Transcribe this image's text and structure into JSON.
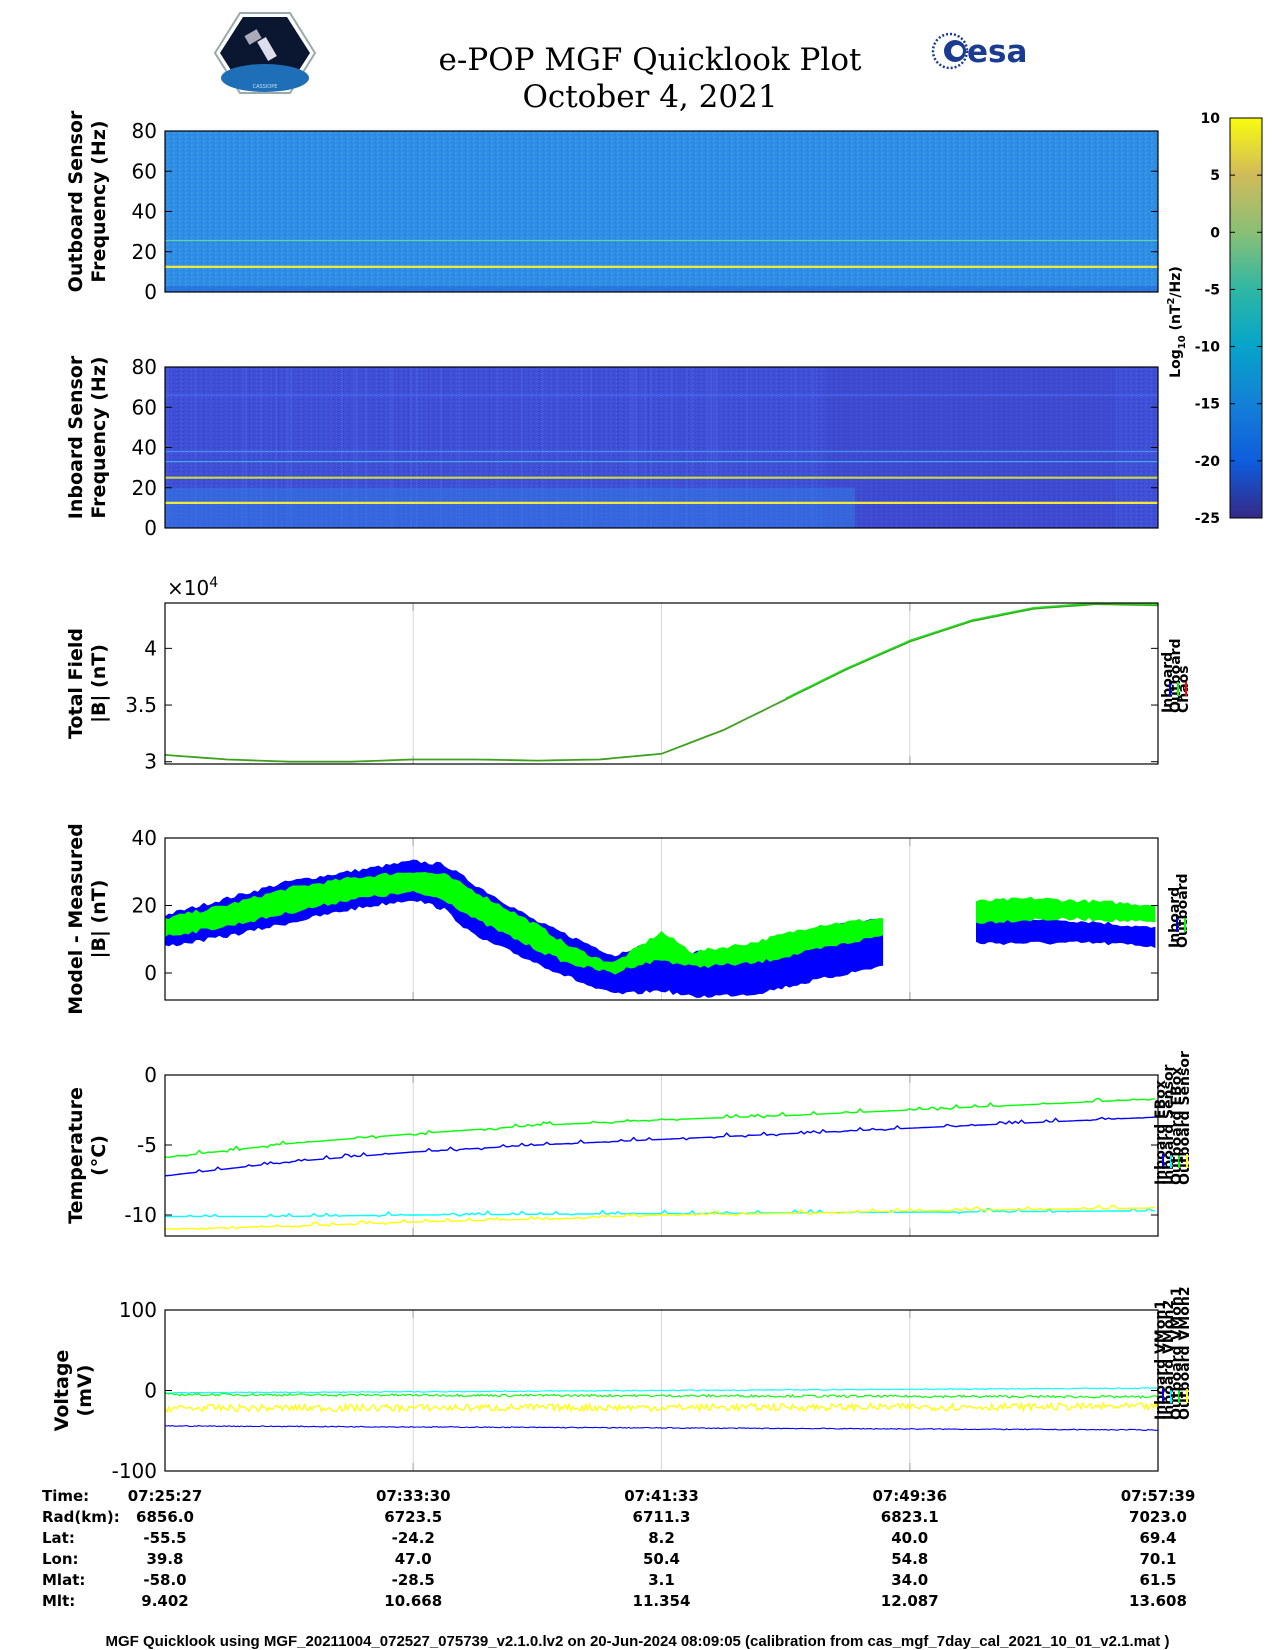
{
  "header": {
    "title": "e-POP MGF Quicklook Plot",
    "date": "October 4, 2021",
    "esa_logo_text": "esa",
    "cassiope_logo_text": "CASSIOPE"
  },
  "colorbar": {
    "label": "Log10 (nT^2/Hz)",
    "label_main": "Log",
    "label_sub": "10",
    "label_rest": " (nT",
    "label_sup": "2",
    "label_end": "/Hz)",
    "ticks": [
      "10",
      "5",
      "0",
      "-5",
      "-10",
      "-15",
      "-20",
      "-25"
    ],
    "range": [
      -25,
      10
    ]
  },
  "chart_data": [
    {
      "type": "heatmap",
      "ylabel": [
        "Outboard Sensor",
        "Frequency (Hz)"
      ],
      "ylim": [
        0,
        80
      ],
      "yticks": [
        "80",
        "60",
        "40",
        "20",
        "0"
      ],
      "background_log10": -13,
      "lines": [
        {
          "frequency_hz": 12.5,
          "log10": 6,
          "color": "#f3e83a"
        },
        {
          "frequency_hz": 25.6,
          "log10": -7,
          "color": "#5fd2a8"
        }
      ]
    },
    {
      "type": "heatmap",
      "ylabel": [
        "Inboard Sensor",
        "Frequency (Hz)"
      ],
      "ylim": [
        0,
        80
      ],
      "yticks": [
        "80",
        "60",
        "40",
        "20",
        "0"
      ],
      "background_log10": -18,
      "lines": [
        {
          "frequency_hz": 12.5,
          "log10": 6,
          "color": "#f3e83a"
        },
        {
          "frequency_hz": 25.0,
          "log10": 2,
          "color": "#c9d84a"
        },
        {
          "frequency_hz": 33.0,
          "log10": -12,
          "color": "#3ea8e8"
        },
        {
          "frequency_hz": 38.0,
          "log10": -13,
          "color": "#4a8ef0"
        },
        {
          "frequency_hz": 66.0,
          "log10": -15,
          "color": "#4d6cf5"
        }
      ]
    },
    {
      "type": "line",
      "ylabel": [
        "Total Field",
        "|B| (nT)"
      ],
      "exponent_label": "×10^4",
      "exponent_base": "×10",
      "exponent_power": "4",
      "ylim": [
        2.98,
        4.4
      ],
      "yticks": [
        "3",
        "3.5",
        "4"
      ],
      "ytick_values": [
        3.0,
        3.5,
        4.0
      ],
      "legend": [
        "Inboard",
        "Outboard",
        "Chaos"
      ],
      "legend_colors": [
        "#0000ff",
        "#00ff00",
        "#ff0000"
      ],
      "x_minutes": [
        0,
        4,
        8,
        12,
        16,
        20,
        24,
        28,
        32,
        36,
        40,
        44,
        48,
        52,
        56,
        60,
        64
      ],
      "series": [
        {
          "name": "Outboard",
          "color": "#3f9f1f",
          "values": [
            3.06,
            3.02,
            3.0,
            3.0,
            3.02,
            3.02,
            3.01,
            3.02,
            3.07,
            3.28,
            3.55,
            3.82,
            4.06,
            4.24,
            4.35,
            4.39,
            4.38
          ]
        }
      ]
    },
    {
      "type": "line",
      "ylabel": [
        "Model - Measured",
        "|B| (nT)"
      ],
      "ylim": [
        -8,
        40
      ],
      "yticks": [
        "40",
        "20",
        "0"
      ],
      "ytick_values": [
        40,
        20,
        0
      ],
      "legend": [
        "Inboard",
        "Outboard"
      ],
      "legend_colors": [
        "#0000ff",
        "#00ff00"
      ],
      "x_minutes": [
        0,
        4,
        8,
        12,
        16,
        18,
        20,
        24,
        26,
        28,
        29,
        30,
        32,
        34,
        38,
        42,
        46,
        52,
        56,
        60,
        64
      ],
      "gaps_minutes": [
        [
          46.3,
          52.3
        ]
      ],
      "series": [
        {
          "name": "Inboard",
          "color": "#0000ff",
          "upper": [
            17,
            22,
            27,
            30,
            33,
            32,
            26,
            15,
            11,
            7,
            5,
            7,
            9,
            6,
            8,
            13,
            16,
            16,
            16,
            15,
            13
          ],
          "lower": [
            8,
            11,
            15,
            19,
            22,
            19,
            11,
            3,
            -1,
            -5,
            -6,
            -6,
            -5,
            -7,
            -6,
            -2,
            2,
            9,
            9,
            9,
            8
          ]
        },
        {
          "name": "Outboard",
          "color": "#00ff00",
          "upper": [
            16,
            20,
            25,
            28,
            30,
            29,
            24,
            14,
            8,
            4,
            3,
            6,
            12,
            6,
            9,
            14,
            16,
            21,
            22,
            21,
            20
          ],
          "lower": [
            11,
            14,
            18,
            22,
            24,
            22,
            16,
            7,
            3,
            1,
            0,
            2,
            4,
            2,
            3,
            7,
            11,
            15,
            16,
            16,
            15
          ]
        }
      ]
    },
    {
      "type": "line",
      "ylabel": [
        "Temperature",
        "(°C)"
      ],
      "ylim": [
        -11.5,
        0
      ],
      "yticks": [
        "0",
        "-5",
        "-10"
      ],
      "ytick_values": [
        0,
        -5,
        -10
      ],
      "legend": [
        "Inboard EBox",
        "Inboard Sensor",
        "Outboard EBox",
        "Outboard Sensor"
      ],
      "legend_colors": [
        "#0000ff",
        "#00ffff",
        "#00ff00",
        "#ffff00"
      ],
      "x_minutes": [
        0,
        8,
        16,
        24,
        32,
        40,
        48,
        56,
        64
      ],
      "series": [
        {
          "name": "Outboard EBox",
          "color": "#00ff00",
          "values": [
            -5.9,
            -4.9,
            -4.2,
            -3.6,
            -3.2,
            -2.9,
            -2.5,
            -2.1,
            -1.7
          ]
        },
        {
          "name": "Inboard EBox",
          "color": "#0000ff",
          "values": [
            -7.2,
            -6.2,
            -5.5,
            -5.0,
            -4.6,
            -4.2,
            -3.8,
            -3.4,
            -3.0
          ]
        },
        {
          "name": "Inboard Sensor",
          "color": "#00ffff",
          "values": [
            -10.1,
            -10.1,
            -10.0,
            -9.95,
            -9.9,
            -9.85,
            -9.8,
            -9.75,
            -9.7
          ]
        },
        {
          "name": "Outboard Sensor",
          "color": "#ffff00",
          "values": [
            -11.0,
            -10.8,
            -10.5,
            -10.3,
            -10.0,
            -9.9,
            -9.7,
            -9.6,
            -9.5
          ]
        }
      ]
    },
    {
      "type": "line",
      "ylabel": [
        "Voltage",
        "(mV)"
      ],
      "ylim": [
        -100,
        100
      ],
      "yticks": [
        "100",
        "0",
        "-100"
      ],
      "ytick_values": [
        100,
        0,
        -100
      ],
      "legend": [
        "Inboard VMon1",
        "Inboard VMon2",
        "Outboard VMon1",
        "Outboard VMon2"
      ],
      "legend_colors": [
        "#0000ff",
        "#00ffff",
        "#00ff00",
        "#ffff00"
      ],
      "x_minutes": [
        0,
        64
      ],
      "series": [
        {
          "name": "Inboard VMon2",
          "color": "#00ffff",
          "values": [
            -3,
            3
          ]
        },
        {
          "name": "Outboard VMon1",
          "color": "#00ff00",
          "values": [
            -5,
            -8
          ]
        },
        {
          "name": "Outboard VMon2",
          "color": "#ffff00",
          "values": [
            -22,
            -20
          ]
        },
        {
          "name": "Inboard VMon1",
          "color": "#0000ff",
          "values": [
            -44,
            -49
          ]
        }
      ]
    }
  ],
  "time_axis": {
    "row_labels": [
      "Time:",
      "Rad(km):",
      "Lat:",
      "Lon:",
      "Mlat:",
      "Mlt:"
    ],
    "columns": [
      [
        "07:25:27",
        "6856.0",
        "-55.5",
        "39.8",
        "-58.0",
        "9.402"
      ],
      [
        "07:33:30",
        "6723.5",
        "-24.2",
        "47.0",
        "-28.5",
        "10.668"
      ],
      [
        "07:41:33",
        "6711.3",
        "8.2",
        "50.4",
        "3.1",
        "11.354"
      ],
      [
        "07:49:36",
        "6823.1",
        "40.0",
        "54.8",
        "34.0",
        "12.087"
      ],
      [
        "07:57:39",
        "7023.0",
        "69.4",
        "70.1",
        "61.5",
        "13.608"
      ]
    ]
  },
  "footer": "MGF Quicklook using MGF_20211004_072527_075739_v2.1.0.lv2 on 20-Jun-2024 08:09:05 (calibration from cas_mgf_7day_cal_2021_10_01_v2.1.mat )"
}
